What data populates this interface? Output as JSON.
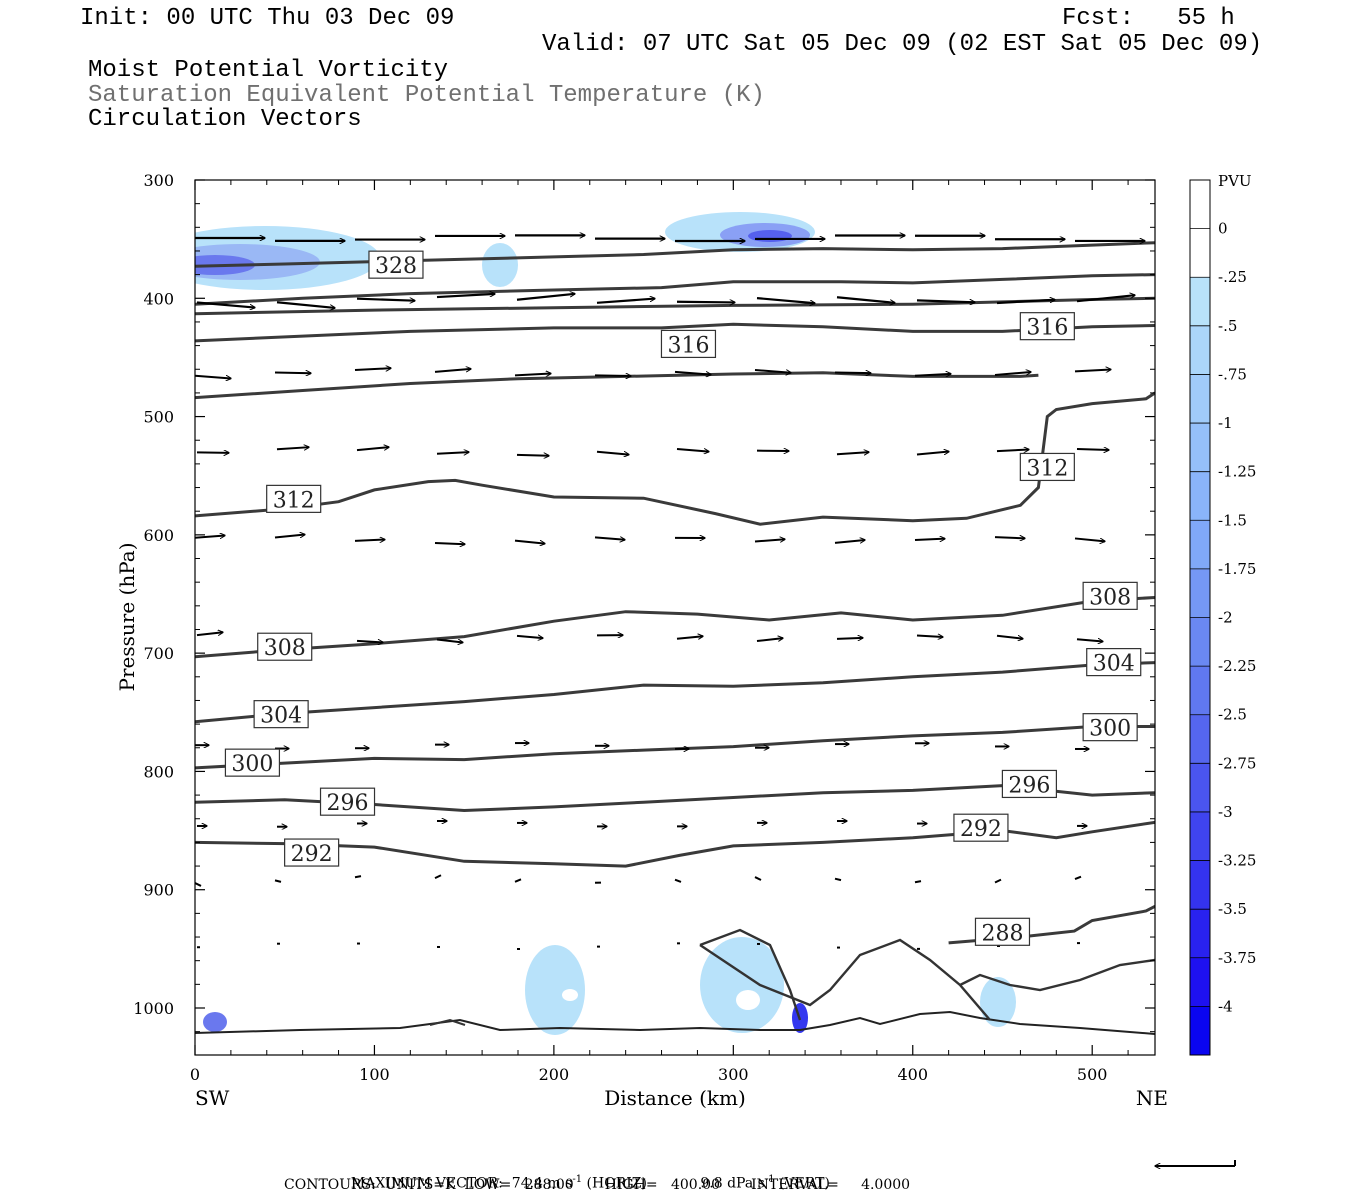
{
  "header": {
    "init": "Init: 00 UTC Thu 03 Dec 09",
    "fcst": "Fcst:   55 h",
    "valid": "Valid: 07 UTC Sat 05 Dec 09 (02 EST Sat 05 Dec 09)",
    "title1": "Moist Potential Vorticity",
    "title2": "Saturation Equivalent Potential Temperature (K)",
    "title3": "Circulation Vectors"
  },
  "footer": {
    "max_vector_label": "MAXIMUM VECTOR:",
    "horiz_value": "74.4 m s",
    "horiz_unit": "(HORIZ)",
    "vert_value": "9.8 dPa s",
    "vert_unit": "(VERT)",
    "superscript": "-1",
    "contours_line": "CONTOURS:  UNITS=K  LOW=   288.00       HIGH=   400.00       INTERVAL=     4.0000"
  },
  "colors": {
    "contour": "#3a3a3a",
    "arrow": "#000000",
    "pv_light": "#b8e2fa",
    "pv_dark": "#0a10f0"
  },
  "chart_data": {
    "type": "contour",
    "title": "Moist Potential Vorticity",
    "xlabel": "Distance (km)",
    "ylabel": "Pressure (hPa)",
    "xlim": [
      0,
      535
    ],
    "ylim": [
      1040,
      300
    ],
    "x_ticks": [
      0,
      100,
      200,
      300,
      400,
      500
    ],
    "y_ticks": [
      300,
      400,
      500,
      600,
      700,
      800,
      900,
      1000
    ],
    "x_end_labels": [
      "SW",
      "NE"
    ],
    "colorbar": {
      "label": "PVU",
      "levels": [
        "0",
        "-.25",
        "-.5",
        "-.75",
        "-1",
        "-1.25",
        "-1.5",
        "-1.75",
        "-2",
        "-2.25",
        "-2.5",
        "-2.75",
        "-3",
        "-3.25",
        "-3.5",
        "-3.75",
        "-4"
      ],
      "colors": [
        "#ffffff",
        "#ffffff",
        "#b8e2fa",
        "#abd6fa",
        "#a0cbfa",
        "#95c0fa",
        "#8ab4fa",
        "#80a8f8",
        "#7598f5",
        "#6a88f2",
        "#6078f0",
        "#5566ef",
        "#4a55ef",
        "#3f44ef",
        "#3433ef",
        "#2922ef",
        "#1e11f0",
        "#0a05f0"
      ]
    },
    "contours": [
      {
        "label": "328",
        "label_positions": [
          [
            112,
            372
          ]
        ],
        "points": [
          [
            0,
            373
          ],
          [
            50,
            371
          ],
          [
            100,
            369
          ],
          [
            150,
            367
          ],
          [
            200,
            365
          ],
          [
            250,
            363
          ],
          [
            300,
            359
          ],
          [
            350,
            358
          ],
          [
            400,
            359
          ],
          [
            450,
            358
          ],
          [
            500,
            355
          ],
          [
            535,
            353
          ]
        ]
      },
      {
        "label": "",
        "label_positions": [],
        "points": [
          [
            0,
            405
          ],
          [
            60,
            400
          ],
          [
            120,
            396
          ],
          [
            200,
            393
          ],
          [
            260,
            391
          ],
          [
            300,
            386
          ],
          [
            360,
            386
          ],
          [
            400,
            387
          ],
          [
            450,
            384
          ],
          [
            500,
            381
          ],
          [
            535,
            380
          ]
        ]
      },
      {
        "label": "",
        "label_positions": [],
        "points": [
          [
            0,
            413
          ],
          [
            100,
            410
          ],
          [
            200,
            408
          ],
          [
            300,
            406
          ],
          [
            400,
            405
          ],
          [
            500,
            401
          ],
          [
            535,
            400
          ]
        ]
      },
      {
        "label": "316",
        "label_positions": [
          [
            275,
            439
          ],
          [
            475,
            424
          ]
        ],
        "points": [
          [
            0,
            436
          ],
          [
            60,
            432
          ],
          [
            120,
            428
          ],
          [
            200,
            425
          ],
          [
            260,
            425
          ],
          [
            300,
            422
          ],
          [
            350,
            424
          ],
          [
            400,
            428
          ],
          [
            450,
            428
          ],
          [
            500,
            424
          ],
          [
            535,
            423
          ]
        ]
      },
      {
        "label": "",
        "label_positions": [],
        "points": [
          [
            0,
            484
          ],
          [
            60,
            478
          ],
          [
            120,
            472
          ],
          [
            180,
            468
          ],
          [
            240,
            466
          ],
          [
            300,
            464
          ],
          [
            350,
            463
          ],
          [
            400,
            466
          ],
          [
            460,
            466
          ],
          [
            470,
            465
          ]
        ]
      },
      {
        "label": "312",
        "label_positions": [
          [
            55,
            570
          ],
          [
            475,
            543
          ]
        ],
        "points": [
          [
            0,
            584
          ],
          [
            50,
            578
          ],
          [
            80,
            572
          ],
          [
            100,
            562
          ],
          [
            130,
            555
          ],
          [
            145,
            554
          ],
          [
            160,
            558
          ],
          [
            200,
            568
          ],
          [
            250,
            569
          ],
          [
            290,
            582
          ],
          [
            315,
            591
          ],
          [
            350,
            585
          ],
          [
            400,
            588
          ],
          [
            430,
            586
          ],
          [
            460,
            575
          ],
          [
            470,
            560
          ],
          [
            475,
            500
          ],
          [
            480,
            494
          ],
          [
            500,
            489
          ],
          [
            530,
            485
          ],
          [
            535,
            480
          ]
        ]
      },
      {
        "label": "308",
        "label_positions": [
          [
            50,
            695
          ],
          [
            510,
            652
          ]
        ],
        "points": [
          [
            0,
            703
          ],
          [
            50,
            697
          ],
          [
            100,
            692
          ],
          [
            150,
            686
          ],
          [
            200,
            673
          ],
          [
            240,
            665
          ],
          [
            280,
            667
          ],
          [
            320,
            672
          ],
          [
            360,
            666
          ],
          [
            400,
            672
          ],
          [
            450,
            668
          ],
          [
            500,
            656
          ],
          [
            535,
            653
          ]
        ]
      },
      {
        "label": "304",
        "label_positions": [
          [
            48,
            752
          ],
          [
            512,
            708
          ]
        ],
        "points": [
          [
            0,
            758
          ],
          [
            50,
            751
          ],
          [
            100,
            746
          ],
          [
            150,
            741
          ],
          [
            200,
            735
          ],
          [
            250,
            727
          ],
          [
            300,
            728
          ],
          [
            350,
            725
          ],
          [
            400,
            720
          ],
          [
            450,
            716
          ],
          [
            500,
            710
          ],
          [
            535,
            708
          ]
        ]
      },
      {
        "label": "300",
        "label_positions": [
          [
            32,
            793
          ],
          [
            510,
            763
          ]
        ],
        "points": [
          [
            0,
            797
          ],
          [
            50,
            793
          ],
          [
            100,
            789
          ],
          [
            150,
            790
          ],
          [
            200,
            785
          ],
          [
            250,
            782
          ],
          [
            300,
            779
          ],
          [
            350,
            774
          ],
          [
            400,
            770
          ],
          [
            450,
            767
          ],
          [
            500,
            762
          ],
          [
            535,
            762
          ]
        ]
      },
      {
        "label": "296",
        "label_positions": [
          [
            85,
            826
          ],
          [
            465,
            811
          ]
        ],
        "points": [
          [
            0,
            826
          ],
          [
            50,
            824
          ],
          [
            100,
            828
          ],
          [
            150,
            833
          ],
          [
            200,
            830
          ],
          [
            250,
            826
          ],
          [
            300,
            822
          ],
          [
            350,
            818
          ],
          [
            400,
            816
          ],
          [
            450,
            812
          ],
          [
            500,
            820
          ],
          [
            535,
            818
          ]
        ]
      },
      {
        "label": "292",
        "label_positions": [
          [
            65,
            869
          ],
          [
            438,
            848
          ]
        ],
        "points": [
          [
            0,
            860
          ],
          [
            50,
            861
          ],
          [
            100,
            864
          ],
          [
            150,
            876
          ],
          [
            200,
            878
          ],
          [
            240,
            880
          ],
          [
            270,
            871
          ],
          [
            300,
            863
          ],
          [
            350,
            860
          ],
          [
            400,
            856
          ],
          [
            450,
            850
          ],
          [
            480,
            856
          ],
          [
            500,
            851
          ],
          [
            535,
            843
          ]
        ]
      },
      {
        "label": "288",
        "label_positions": [
          [
            450,
            936
          ]
        ],
        "points": [
          [
            420,
            945
          ],
          [
            460,
            940
          ],
          [
            490,
            935
          ],
          [
            500,
            926
          ],
          [
            530,
            918
          ],
          [
            535,
            914
          ]
        ]
      }
    ]
  }
}
